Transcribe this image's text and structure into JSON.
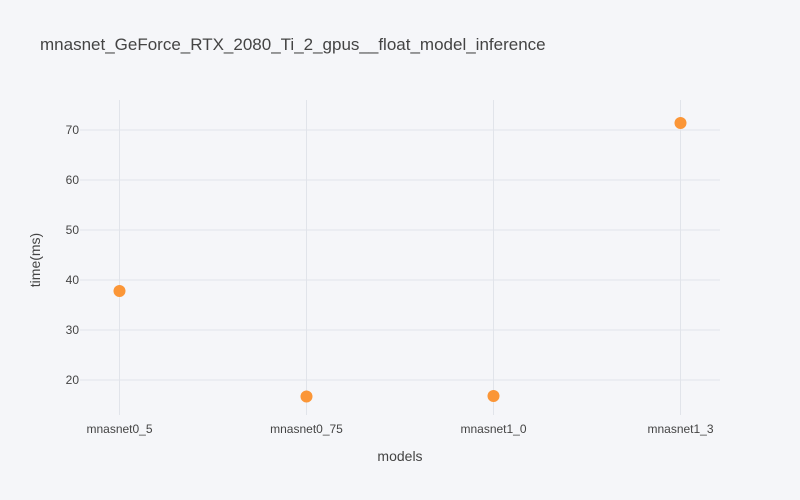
{
  "chart_data": {
    "type": "scatter",
    "title": "mnasnet_GeForce_RTX_2080_Ti_2_gpus__float_model_inference",
    "xlabel": "models",
    "ylabel": "time(ms)",
    "categories": [
      "mnasnet0_5",
      "mnasnet0_75",
      "mnasnet1_0",
      "mnasnet1_3"
    ],
    "values": [
      37.8,
      16.7,
      16.8,
      71.4
    ],
    "ylim": [
      13,
      76
    ],
    "yticks": [
      20,
      30,
      40,
      50,
      60,
      70
    ],
    "ytick_labels": [
      "20",
      "30",
      "40",
      "50",
      "60",
      "70"
    ],
    "marker_color": "#fb9637",
    "grid": true,
    "legend": "none"
  }
}
